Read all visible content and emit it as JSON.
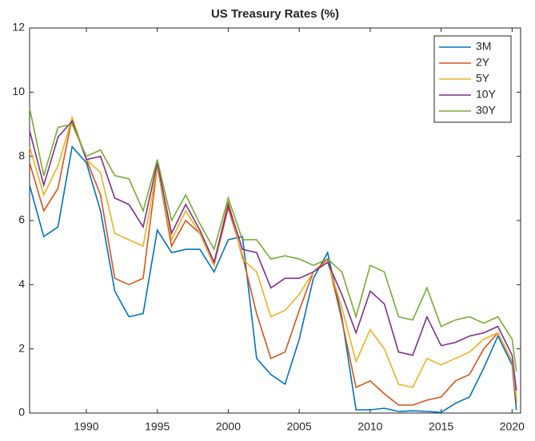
{
  "chart_data": {
    "type": "line",
    "title": "US Treasury Rates (%)",
    "x": [
      1986,
      1987,
      1988,
      1989,
      1990,
      1991,
      1992,
      1993,
      1994,
      1995,
      1996,
      1997,
      1998,
      1999,
      2000,
      2001,
      2002,
      2003,
      2004,
      2005,
      2006,
      2007,
      2008,
      2009,
      2010,
      2011,
      2012,
      2013,
      2014,
      2015,
      2016,
      2017,
      2018,
      2019,
      2020,
      2020.3
    ],
    "series": [
      {
        "name": "3M",
        "color": "#0072bd",
        "values": [
          7.1,
          5.5,
          5.8,
          8.3,
          7.8,
          6.3,
          3.8,
          3.0,
          3.1,
          5.7,
          5.0,
          5.1,
          5.1,
          4.4,
          5.4,
          5.5,
          1.7,
          1.2,
          0.9,
          2.3,
          4.2,
          5.0,
          3.0,
          0.1,
          0.1,
          0.15,
          0.05,
          0.07,
          0.05,
          0.02,
          0.3,
          0.5,
          1.4,
          2.4,
          1.5,
          0.1
        ]
      },
      {
        "name": "2Y",
        "color": "#d95319",
        "values": [
          7.8,
          6.3,
          7.0,
          9.2,
          7.9,
          6.8,
          4.2,
          4.0,
          4.2,
          7.7,
          5.2,
          6.0,
          5.6,
          4.6,
          6.4,
          4.9,
          3.1,
          1.7,
          1.9,
          3.2,
          4.4,
          4.8,
          2.9,
          0.8,
          1.0,
          0.6,
          0.25,
          0.25,
          0.4,
          0.5,
          1.0,
          1.2,
          2.0,
          2.5,
          1.6,
          0.3
        ]
      },
      {
        "name": "5Y",
        "color": "#edb120",
        "values": [
          8.3,
          6.8,
          7.7,
          9.2,
          7.9,
          7.5,
          5.6,
          5.4,
          5.2,
          7.7,
          5.4,
          6.3,
          5.6,
          4.6,
          6.6,
          4.8,
          4.4,
          3.0,
          3.2,
          3.7,
          4.4,
          4.7,
          3.3,
          1.6,
          2.6,
          2.0,
          0.9,
          0.8,
          1.7,
          1.5,
          1.7,
          1.9,
          2.3,
          2.5,
          1.6,
          0.5
        ]
      },
      {
        "name": "10Y",
        "color": "#7e2f8e",
        "values": [
          8.8,
          7.1,
          8.6,
          9.1,
          7.9,
          8.0,
          6.7,
          6.5,
          5.8,
          7.8,
          5.6,
          6.5,
          5.7,
          4.7,
          6.5,
          5.1,
          5.0,
          3.9,
          4.2,
          4.2,
          4.4,
          4.7,
          3.7,
          2.5,
          3.8,
          3.4,
          1.9,
          1.8,
          3.0,
          2.1,
          2.2,
          2.4,
          2.5,
          2.7,
          1.8,
          0.7
        ]
      },
      {
        "name": "30Y",
        "color": "#77ac30",
        "values": [
          9.5,
          7.4,
          8.9,
          9.0,
          8.0,
          8.2,
          7.4,
          7.3,
          6.3,
          7.9,
          6.0,
          6.8,
          5.9,
          5.1,
          6.7,
          5.4,
          5.4,
          4.8,
          4.9,
          4.8,
          4.6,
          4.8,
          4.4,
          3.0,
          4.6,
          4.4,
          3.0,
          2.9,
          3.9,
          2.7,
          2.9,
          3.0,
          2.8,
          3.0,
          2.3,
          1.3
        ]
      }
    ],
    "xlim": [
      1986,
      2020.6
    ],
    "xticks": [
      1990,
      1995,
      2000,
      2005,
      2010,
      2015,
      2020
    ],
    "ylim": [
      0,
      12
    ],
    "yticks": [
      0,
      2,
      4,
      6,
      8,
      10,
      12
    ],
    "legend": "top-right"
  }
}
